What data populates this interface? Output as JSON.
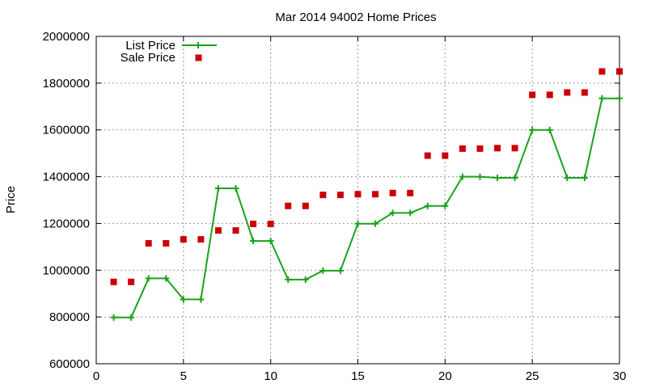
{
  "chart_data": {
    "type": "line",
    "title": "Mar 2014 94002 Home Prices",
    "xlabel": "",
    "ylabel": "Price",
    "xlim": [
      0,
      30
    ],
    "ylim": [
      600000,
      2000000
    ],
    "x_ticks": [
      "0",
      "5",
      "10",
      "15",
      "20",
      "25",
      "30"
    ],
    "y_ticks": [
      "600000",
      "800000",
      "1000000",
      "1200000",
      "1400000",
      "1600000",
      "1800000",
      "2000000"
    ],
    "grid": true,
    "legend_position": "top-left",
    "series": [
      {
        "name": "List Price",
        "style": "line-with-plus-markers",
        "color": "#1aa31a",
        "x": [
          1,
          2,
          3,
          4,
          5,
          6,
          7,
          8,
          9,
          10,
          11,
          12,
          13,
          14,
          15,
          16,
          17,
          18,
          19,
          20,
          21,
          22,
          23,
          24,
          25,
          26,
          27,
          28,
          29,
          30
        ],
        "values": [
          798000,
          798000,
          965000,
          965000,
          875000,
          875000,
          1350000,
          1350000,
          1125000,
          1125000,
          960000,
          960000,
          998000,
          998000,
          1199000,
          1199000,
          1245000,
          1245000,
          1275000,
          1275000,
          1400000,
          1400000,
          1395000,
          1395000,
          1600000,
          1600000,
          1395000,
          1395000,
          1735000,
          1735000
        ]
      },
      {
        "name": "Sale Price",
        "style": "square-markers",
        "color": "#cc0000",
        "x": [
          1,
          2,
          3,
          4,
          5,
          6,
          7,
          8,
          9,
          10,
          11,
          12,
          13,
          14,
          15,
          16,
          17,
          18,
          19,
          20,
          21,
          22,
          23,
          24,
          25,
          26,
          27,
          28,
          29,
          30
        ],
        "values": [
          950000,
          950000,
          1115000,
          1115000,
          1132000,
          1132000,
          1170000,
          1170000,
          1198000,
          1198000,
          1275000,
          1275000,
          1322000,
          1322000,
          1325000,
          1325000,
          1330000,
          1330000,
          1490000,
          1490000,
          1520000,
          1520000,
          1522000,
          1522000,
          1750000,
          1750000,
          1760000,
          1760000,
          1850000,
          1850000
        ]
      }
    ]
  }
}
